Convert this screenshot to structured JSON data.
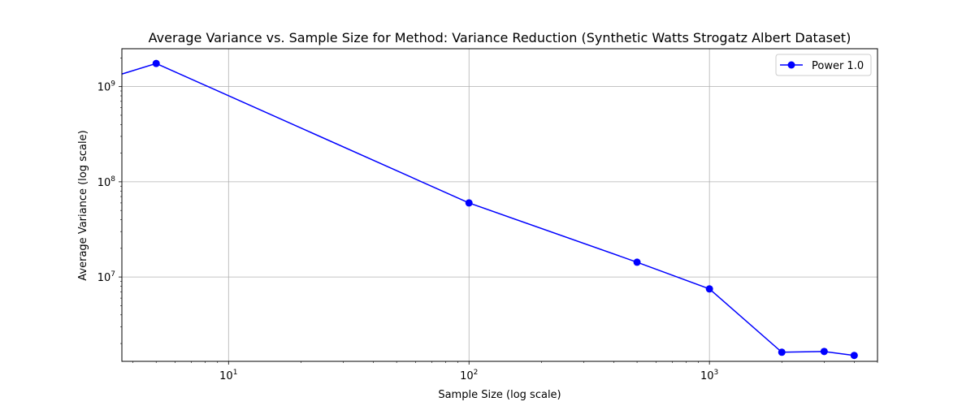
{
  "chart_data": {
    "type": "line",
    "title": "Average Variance vs. Sample Size for Method: Variance Reduction (Synthetic Watts Strogatz Albert Dataset)",
    "xlabel": "Sample Size (log scale)",
    "ylabel": "Average Variance (log scale)",
    "xscale": "log",
    "yscale": "log",
    "xlim": [
      3.6,
      5000
    ],
    "ylim": [
      1300000,
      2500000000
    ],
    "grid": true,
    "legend_position": "top-right",
    "x_ticks": [
      {
        "value": 10,
        "base": "10",
        "exp": "1"
      },
      {
        "value": 100,
        "base": "10",
        "exp": "2"
      },
      {
        "value": 1000,
        "base": "10",
        "exp": "3"
      }
    ],
    "y_ticks": [
      {
        "value": 10000000,
        "base": "10",
        "exp": "7"
      },
      {
        "value": 100000000,
        "base": "10",
        "exp": "8"
      },
      {
        "value": 1000000000,
        "base": "10",
        "exp": "9"
      }
    ],
    "series": [
      {
        "name": "Power 1.0",
        "color": "#0000ff",
        "marker": "circle",
        "x": [
          1,
          5,
          100,
          500,
          1000,
          2000,
          3000,
          4000
        ],
        "y": [
          500000000,
          1750000000,
          60000000,
          14300000,
          7500000,
          1620000,
          1650000,
          1500000
        ]
      }
    ]
  }
}
